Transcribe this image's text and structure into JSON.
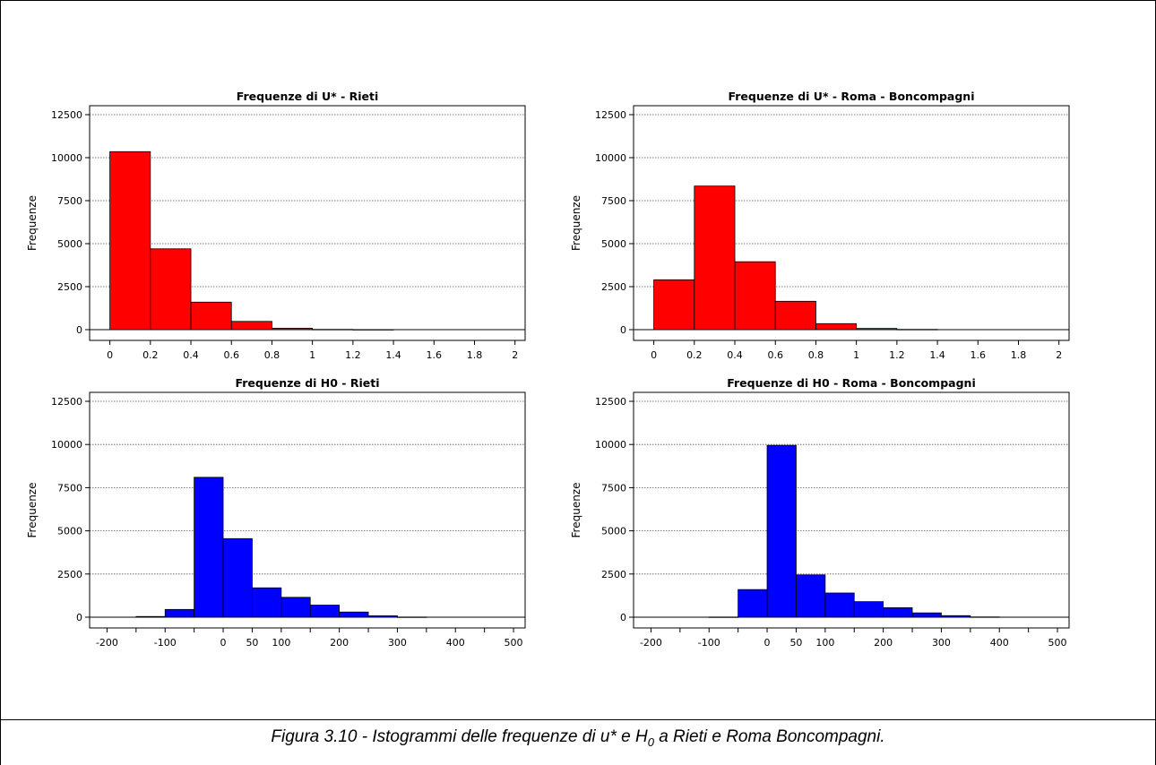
{
  "caption": {
    "prefix": "Figura 3.10 - Istogrammi delle frequenze di u* e H",
    "sub": "0",
    "suffix": " a Rieti e Roma Boncompagni."
  },
  "chart_data": [
    {
      "type": "bar",
      "title": "Frequenze di U* -  Rieti",
      "ylabel": "Frequenze",
      "xlabel": "",
      "color": "#ff0000",
      "xlim": [
        -0.1,
        2.05
      ],
      "ylim": [
        0,
        12500
      ],
      "yticks": [
        0,
        2500,
        5000,
        7500,
        10000,
        12500
      ],
      "xticks": [
        0,
        0.2,
        0.4,
        0.6,
        0.8,
        1,
        1.2,
        1.4,
        1.6,
        1.8,
        2
      ],
      "grid": true,
      "bins": [
        [
          0,
          0.2,
          10350
        ],
        [
          0.2,
          0.4,
          4700
        ],
        [
          0.4,
          0.6,
          1600
        ],
        [
          0.6,
          0.8,
          480
        ],
        [
          0.8,
          1.0,
          80
        ],
        [
          1.0,
          1.2,
          15
        ],
        [
          1.2,
          1.4,
          5
        ]
      ]
    },
    {
      "type": "bar",
      "title": "Frequenze di U* -  Roma - Boncompagni",
      "ylabel": "Frequenze",
      "xlabel": "",
      "color": "#ff0000",
      "xlim": [
        -0.1,
        2.05
      ],
      "ylim": [
        0,
        12500
      ],
      "yticks": [
        0,
        2500,
        5000,
        7500,
        10000,
        12500
      ],
      "xticks": [
        0,
        0.2,
        0.4,
        0.6,
        0.8,
        1,
        1.2,
        1.4,
        1.6,
        1.8,
        2
      ],
      "grid": true,
      "bins": [
        [
          0,
          0.2,
          2900
        ],
        [
          0.2,
          0.4,
          8350
        ],
        [
          0.4,
          0.6,
          3950
        ],
        [
          0.6,
          0.8,
          1650
        ],
        [
          0.8,
          1.0,
          350
        ],
        [
          1.0,
          1.2,
          70
        ],
        [
          1.2,
          1.4,
          15
        ]
      ]
    },
    {
      "type": "bar",
      "title": "Frequenze di H0 -  Rieti",
      "ylabel": "Frequenze",
      "xlabel": "",
      "color": "#0000ff",
      "xlim": [
        -230,
        520
      ],
      "ylim": [
        0,
        12500
      ],
      "yticks": [
        0,
        2500,
        5000,
        7500,
        10000,
        12500
      ],
      "xticks": [
        -200,
        -100,
        0,
        50,
        100,
        200,
        300,
        400,
        500
      ],
      "minor_xticks": [
        -150,
        -50,
        150,
        250,
        350,
        450
      ],
      "grid": true,
      "bins": [
        [
          -150,
          -100,
          40
        ],
        [
          -100,
          -50,
          450
        ],
        [
          -50,
          0,
          8100
        ],
        [
          0,
          50,
          4550
        ],
        [
          50,
          100,
          1700
        ],
        [
          100,
          150,
          1150
        ],
        [
          150,
          200,
          700
        ],
        [
          200,
          250,
          300
        ],
        [
          250,
          300,
          80
        ],
        [
          300,
          350,
          10
        ]
      ]
    },
    {
      "type": "bar",
      "title": "Frequenze di H0 -  Roma - Boncompagni",
      "ylabel": "Frequenze",
      "xlabel": "",
      "color": "#0000ff",
      "xlim": [
        -230,
        520
      ],
      "ylim": [
        0,
        12500
      ],
      "yticks": [
        0,
        2500,
        5000,
        7500,
        10000,
        12500
      ],
      "xticks": [
        -200,
        -100,
        0,
        50,
        100,
        200,
        300,
        400,
        500
      ],
      "minor_xticks": [
        -150,
        -50,
        150,
        250,
        350,
        450
      ],
      "grid": true,
      "bins": [
        [
          -100,
          -50,
          10
        ],
        [
          -50,
          0,
          1600
        ],
        [
          0,
          50,
          9950
        ],
        [
          50,
          100,
          2450
        ],
        [
          100,
          150,
          1400
        ],
        [
          150,
          200,
          900
        ],
        [
          200,
          250,
          550
        ],
        [
          250,
          300,
          250
        ],
        [
          300,
          350,
          90
        ],
        [
          350,
          400,
          15
        ]
      ]
    }
  ]
}
